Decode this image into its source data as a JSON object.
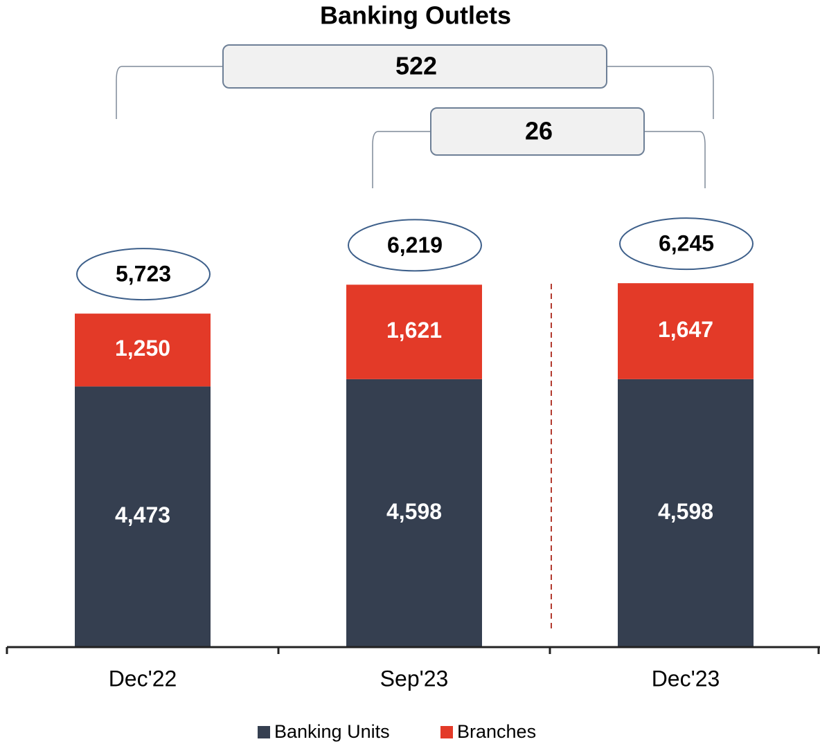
{
  "chart_data": {
    "type": "stacked_bar",
    "title": "Banking Outlets",
    "categories": [
      "Dec'22",
      "Sep'23",
      "Dec'23"
    ],
    "series": [
      {
        "name": "Banking Units",
        "color": "#353f50",
        "values": [
          4473,
          4598,
          4598
        ],
        "value_labels": [
          "4,473",
          "4,598",
          "4,598"
        ]
      },
      {
        "name": "Branches",
        "color": "#e33a28",
        "values": [
          1250,
          1621,
          1647
        ],
        "value_labels": [
          "1,250",
          "1,621",
          "1,647"
        ]
      }
    ],
    "totals": {
      "values": [
        5723,
        6219,
        6245
      ],
      "value_labels": [
        "5,723",
        "6,219",
        "6,245"
      ]
    },
    "changes": [
      522,
      26
    ],
    "ylim": [
      0,
      10000
    ]
  }
}
